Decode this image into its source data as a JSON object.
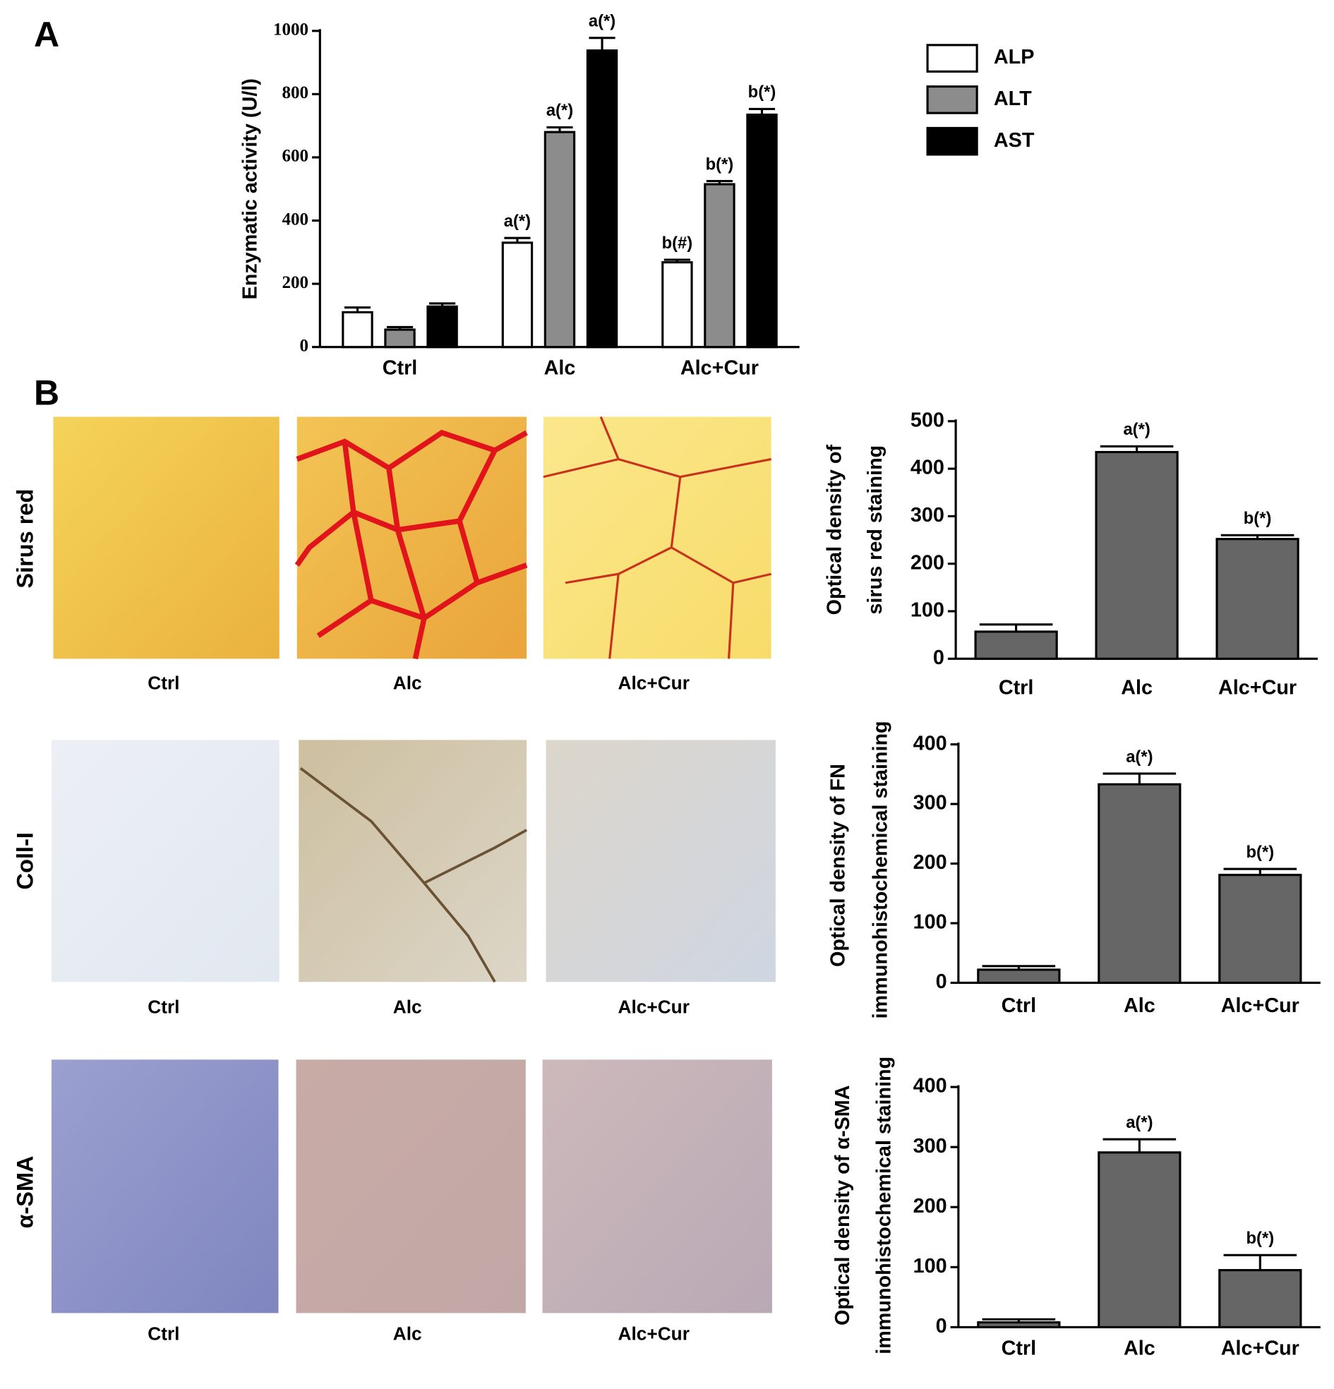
{
  "panel_labels": [
    "A",
    "B"
  ],
  "micrographs": {
    "rows": [
      "Sirus red",
      "Coll-I",
      "α-SMA"
    ],
    "captions": [
      "Ctrl",
      "Alc",
      "Alc+Cur"
    ]
  },
  "chart_data": [
    {
      "type": "bar",
      "ylabel": [
        "Enzymatic activity (U/l)"
      ],
      "categories": [
        "Ctrl",
        "Alc",
        "Alc+Cur"
      ],
      "series": [
        {
          "name": "ALP",
          "color": "#ffffff",
          "values": [
            110,
            330,
            268
          ],
          "errors": [
            15,
            15,
            8
          ],
          "annotations": [
            null,
            "a(*)",
            "b(#)"
          ]
        },
        {
          "name": "ALT",
          "color": "#8c8c8c",
          "values": [
            55,
            680,
            515
          ],
          "errors": [
            8,
            15,
            10
          ],
          "annotations": [
            null,
            "a(*)",
            "b(*)"
          ]
        },
        {
          "name": "AST",
          "color": "#000000",
          "values": [
            128,
            938,
            735
          ],
          "errors": [
            10,
            40,
            18
          ],
          "annotations": [
            null,
            "a(*)",
            "b(*)"
          ]
        }
      ],
      "ylim": [
        0,
        1000
      ],
      "yticks": [
        0,
        200,
        400,
        600,
        800,
        1000
      ]
    },
    {
      "type": "bar",
      "ylabel": [
        "Optical density of",
        "sirus red staining"
      ],
      "categories": [
        "Ctrl",
        "Alc",
        "Alc+Cur"
      ],
      "values": [
        57,
        435,
        252
      ],
      "errors": [
        15,
        12,
        8
      ],
      "annotations": [
        null,
        "a(*)",
        "b(*)"
      ],
      "color": "#666666",
      "ylim": [
        0,
        500
      ],
      "yticks": [
        0,
        100,
        200,
        300,
        400,
        500
      ]
    },
    {
      "type": "bar",
      "ylabel": [
        "Optical density of  FN",
        "immunohistochemical staining"
      ],
      "categories": [
        "Ctrl",
        "Alc",
        "Alc+Cur"
      ],
      "values": [
        22,
        333,
        181
      ],
      "errors": [
        6,
        18,
        10
      ],
      "annotations": [
        null,
        "a(*)",
        "b(*)"
      ],
      "color": "#666666",
      "ylim": [
        0,
        400
      ],
      "yticks": [
        0,
        100,
        200,
        300,
        400
      ]
    },
    {
      "type": "bar",
      "ylabel": [
        "Optical density of α-SMA",
        "immunohistochemical staining"
      ],
      "categories": [
        "Ctrl",
        "Alc",
        "Alc+Cur"
      ],
      "values": [
        8,
        291,
        95
      ],
      "errors": [
        5,
        22,
        25
      ],
      "annotations": [
        null,
        "a(*)",
        "b(*)"
      ],
      "color": "#666666",
      "ylim": [
        0,
        400
      ],
      "yticks": [
        0,
        100,
        200,
        300,
        400
      ]
    }
  ]
}
